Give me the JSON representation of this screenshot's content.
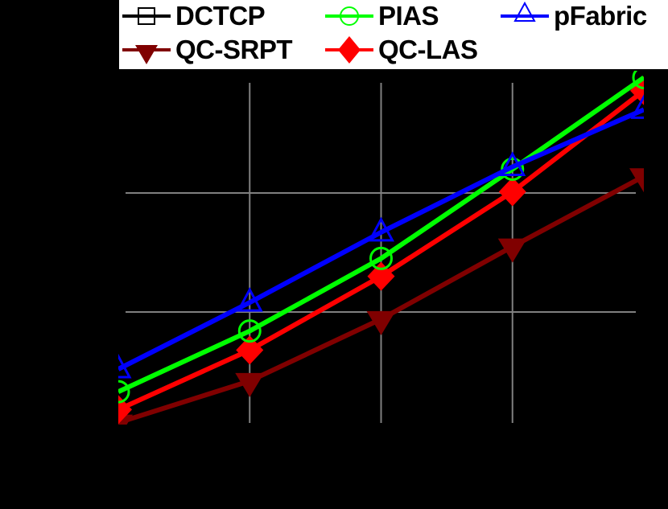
{
  "chart_data": {
    "type": "line",
    "title": "",
    "xlabel": "",
    "ylabel": "",
    "x": [
      1,
      2,
      3,
      4,
      5
    ],
    "x_tick_labels_visible": false,
    "y_tick_labels_visible": false,
    "grid": true,
    "ylim": [
      0,
      3.0
    ],
    "legend_position": "top",
    "series": [
      {
        "name": "DCTCP",
        "color": "#000000",
        "marker": "square-open",
        "values": [],
        "visible_in_plot": false
      },
      {
        "name": "PIAS",
        "color": "#00ff00",
        "marker": "circle-open",
        "values": [
          0.33,
          0.84,
          1.45,
          2.2,
          2.97
        ]
      },
      {
        "name": "pFabric",
        "color": "#0000ff",
        "marker": "triangle-up-open",
        "values": [
          0.52,
          1.08,
          1.67,
          2.22,
          2.7
        ]
      },
      {
        "name": "QC-SRPT",
        "color": "#800000",
        "marker": "triangle-down-filled",
        "values": [
          0.07,
          0.42,
          0.94,
          1.55,
          2.14
        ]
      },
      {
        "name": "QC-LAS",
        "color": "#ff0000",
        "marker": "diamond-filled",
        "values": [
          0.18,
          0.68,
          1.3,
          2.01,
          2.86
        ]
      }
    ]
  },
  "legend": {
    "items": [
      {
        "label": "DCTCP",
        "color": "#000000",
        "marker": "square-open"
      },
      {
        "label": "PIAS",
        "color": "#00ff00",
        "marker": "circle-open"
      },
      {
        "label": "pFabric",
        "color": "#0000ff",
        "marker": "triangle-up-open"
      },
      {
        "label": "QC-SRPT",
        "color": "#800000",
        "marker": "triangle-down-filled"
      },
      {
        "label": "QC-LAS",
        "color": "#ff0000",
        "marker": "diamond-filled"
      }
    ]
  },
  "colors": {
    "background": "#000000",
    "grid": "#808080",
    "legend_bg": "#ffffff"
  }
}
